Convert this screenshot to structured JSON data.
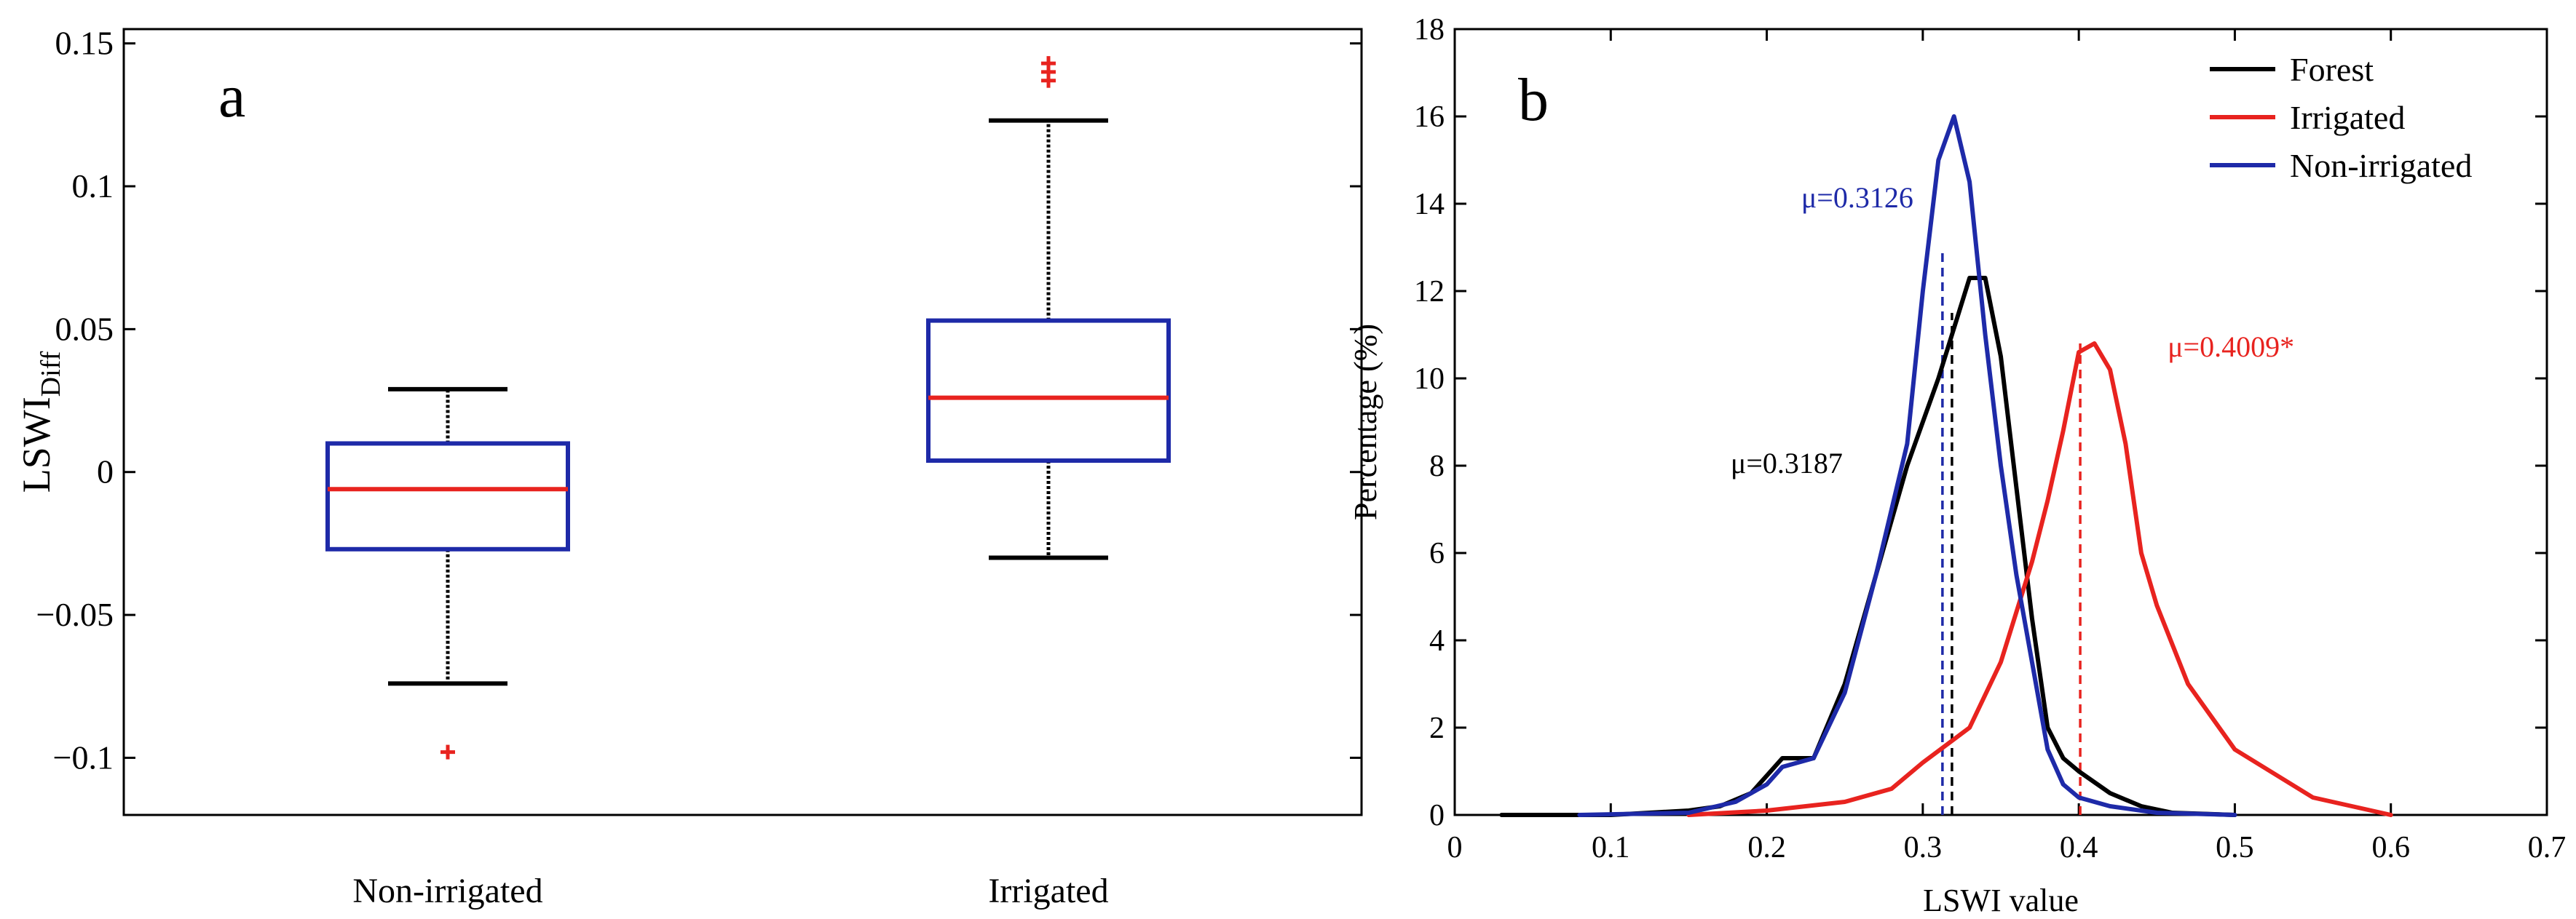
{
  "chart_data": [
    {
      "type": "box",
      "panel_label": "a",
      "ylabel": "LSWI",
      "ylabel_sub": "Diff",
      "ylim": [
        -0.12,
        0.155
      ],
      "yticks": [
        -0.1,
        -0.05,
        0,
        0.05,
        0.1,
        0.15
      ],
      "ytick_labels": [
        "−0.1",
        "−0.05",
        "0",
        "0.05",
        "0.1",
        "0.15"
      ],
      "categories": [
        "Non-irrigated",
        "Irrigated"
      ],
      "boxes": [
        {
          "name": "Non-irrigated",
          "q1": -0.027,
          "median": -0.006,
          "q3": 0.01,
          "whisker_low": -0.074,
          "whisker_high": 0.029,
          "outliers": [
            -0.098
          ]
        },
        {
          "name": "Irrigated",
          "q1": 0.004,
          "median": 0.026,
          "q3": 0.053,
          "whisker_low": -0.03,
          "whisker_high": 0.123,
          "outliers": [
            0.137,
            0.14,
            0.143
          ]
        }
      ],
      "colors": {
        "box": "#1e2aa8",
        "median": "#e8231f",
        "whisker": "#000000",
        "outlier": "#e8231f"
      }
    },
    {
      "type": "line",
      "panel_label": "b",
      "xlabel": "LSWI value",
      "ylabel": "Percentage (%)",
      "xlim": [
        0,
        0.7
      ],
      "ylim": [
        0,
        18
      ],
      "xticks": [
        0,
        0.1,
        0.2,
        0.3,
        0.4,
        0.5,
        0.6,
        0.7
      ],
      "xtick_labels": [
        "0",
        "0.1",
        "0.2",
        "0.3",
        "0.4",
        "0.5",
        "0.6",
        "0.7"
      ],
      "yticks": [
        0,
        2,
        4,
        6,
        8,
        10,
        12,
        14,
        16,
        18
      ],
      "ytick_labels": [
        "0",
        "2",
        "4",
        "6",
        "8",
        "10",
        "12",
        "14",
        "16",
        "18"
      ],
      "legend_position": "top-right",
      "series": [
        {
          "name": "Forest",
          "color": "#000000",
          "x": [
            0.03,
            0.1,
            0.15,
            0.17,
            0.19,
            0.2,
            0.21,
            0.22,
            0.23,
            0.25,
            0.27,
            0.29,
            0.31,
            0.33,
            0.34,
            0.35,
            0.36,
            0.37,
            0.38,
            0.39,
            0.4,
            0.42,
            0.44,
            0.46,
            0.5
          ],
          "y": [
            0,
            0,
            0.1,
            0.2,
            0.5,
            0.9,
            1.3,
            1.3,
            1.3,
            3.0,
            5.5,
            8.0,
            10.0,
            12.3,
            12.3,
            10.5,
            7.5,
            4.5,
            2.0,
            1.3,
            1.0,
            0.5,
            0.2,
            0.05,
            0
          ]
        },
        {
          "name": "Irrigated",
          "color": "#e8231f",
          "x": [
            0.15,
            0.2,
            0.25,
            0.28,
            0.3,
            0.33,
            0.35,
            0.37,
            0.38,
            0.39,
            0.4,
            0.41,
            0.42,
            0.43,
            0.44,
            0.45,
            0.47,
            0.5,
            0.55,
            0.6
          ],
          "y": [
            0,
            0.1,
            0.3,
            0.6,
            1.2,
            2.0,
            3.5,
            5.8,
            7.2,
            8.8,
            10.6,
            10.8,
            10.2,
            8.5,
            6.0,
            4.8,
            3.0,
            1.5,
            0.4,
            0
          ]
        },
        {
          "name": "Non-irrigated",
          "color": "#1e2aa8",
          "x": [
            0.08,
            0.15,
            0.18,
            0.2,
            0.21,
            0.22,
            0.23,
            0.25,
            0.27,
            0.29,
            0.3,
            0.31,
            0.32,
            0.33,
            0.34,
            0.35,
            0.36,
            0.37,
            0.38,
            0.39,
            0.4,
            0.42,
            0.45,
            0.5
          ],
          "y": [
            0,
            0.05,
            0.3,
            0.7,
            1.1,
            1.2,
            1.3,
            2.8,
            5.5,
            8.5,
            12.0,
            15.0,
            16.0,
            14.5,
            11.0,
            8.0,
            5.5,
            3.5,
            1.5,
            0.7,
            0.4,
            0.2,
            0.05,
            0
          ]
        }
      ],
      "mean_lines": [
        {
          "series": "Forest",
          "x": 0.3187,
          "y_top": 11.5,
          "label": "μ=0.3187"
        },
        {
          "series": "Irrigated",
          "x": 0.4009,
          "y_top": 10.8,
          "label": "μ=0.4009*"
        },
        {
          "series": "Non-irrigated",
          "x": 0.3126,
          "y_top": 13.0,
          "label": "μ=0.3126"
        }
      ]
    }
  ]
}
